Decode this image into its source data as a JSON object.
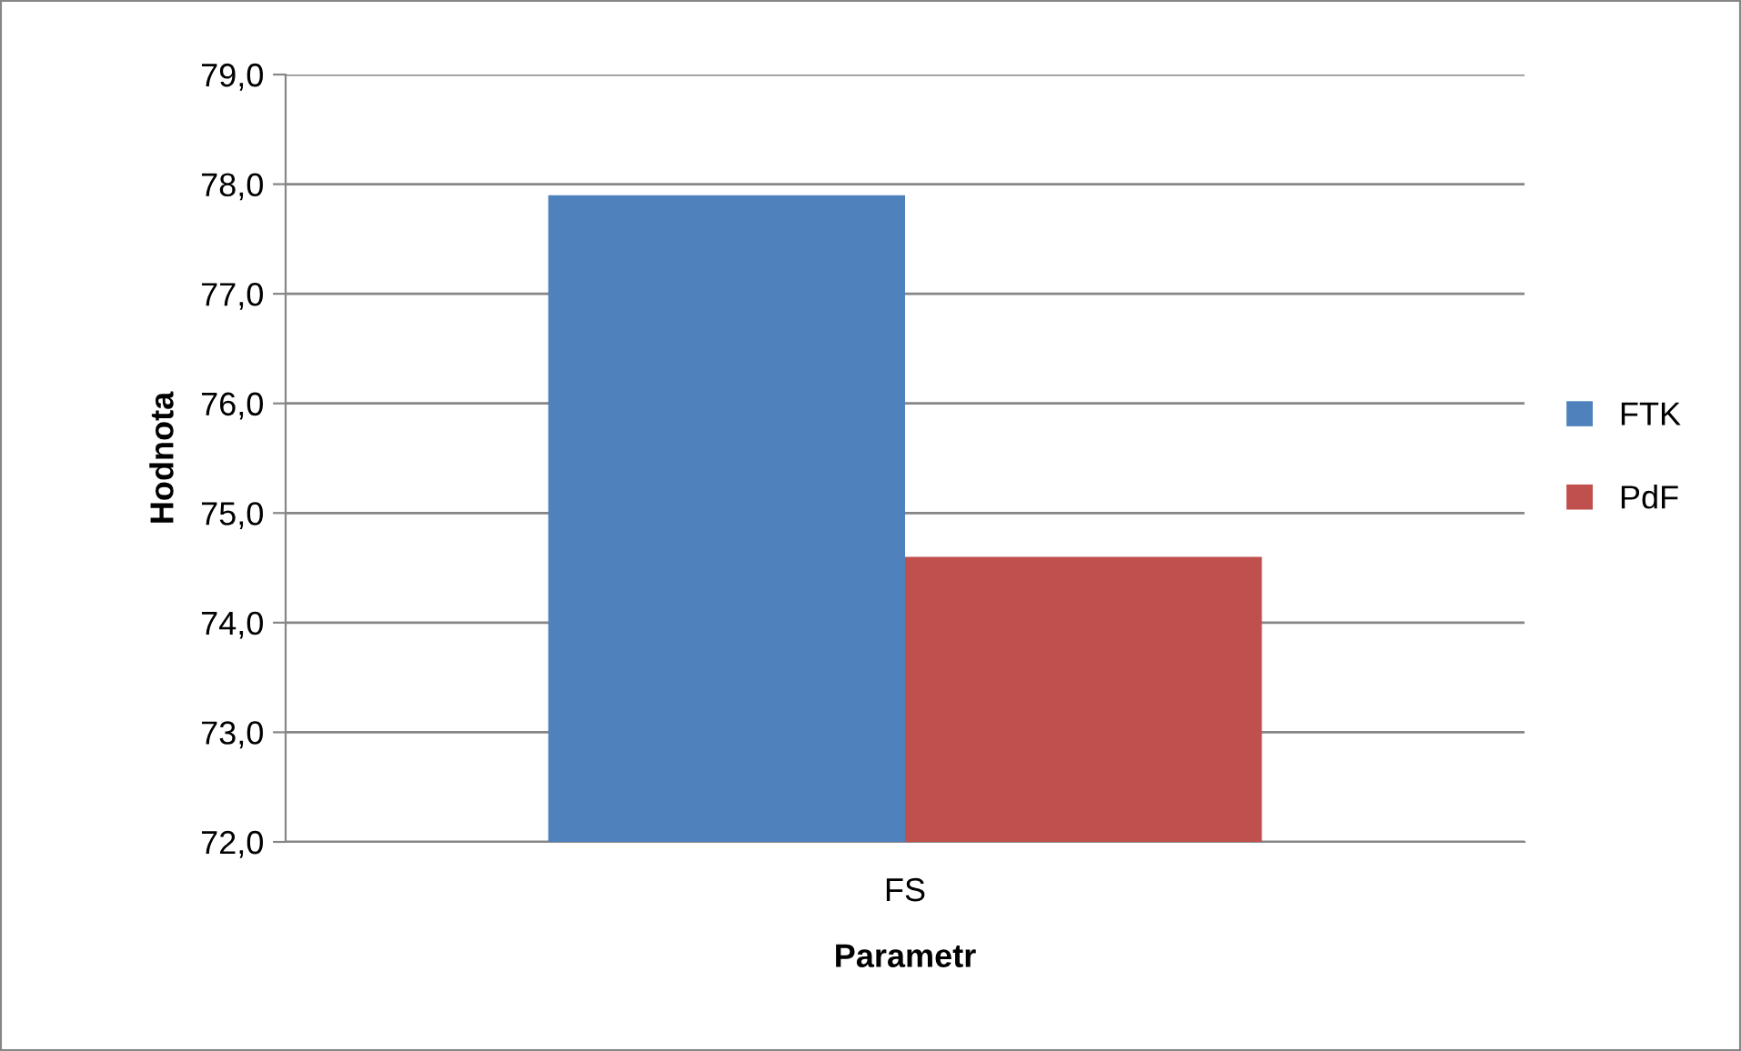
{
  "chart_data": {
    "type": "bar",
    "xlabel": "Parametr",
    "ylabel": "Hodnota",
    "categories": [
      "FS"
    ],
    "series": [
      {
        "name": "FTK",
        "color": "#4f81bd",
        "values": [
          77.9
        ]
      },
      {
        "name": "PdF",
        "color": "#c0504d",
        "values": [
          74.6
        ]
      }
    ],
    "ylim": [
      72,
      79
    ],
    "yticks": [
      {
        "value": 72,
        "label": "72,0"
      },
      {
        "value": 73,
        "label": "73,0"
      },
      {
        "value": 74,
        "label": "74,0"
      },
      {
        "value": 75,
        "label": "75,0"
      },
      {
        "value": 76,
        "label": "76,0"
      },
      {
        "value": 77,
        "label": "77,0"
      },
      {
        "value": 78,
        "label": "78,0"
      },
      {
        "value": 79,
        "label": "79,0"
      }
    ],
    "grid": "y",
    "legend": "right"
  }
}
